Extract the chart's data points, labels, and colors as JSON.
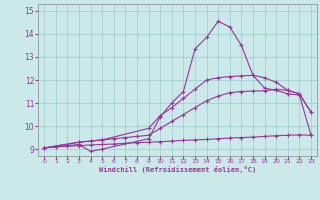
{
  "xlabel": "Windchill (Refroidissement éolien,°C)",
  "bg_color": "#cce9e9",
  "line_color": "#993399",
  "grid_color": "#99cccc",
  "xlim": [
    -0.5,
    23.5
  ],
  "ylim": [
    8.7,
    15.3
  ],
  "yticks": [
    9,
    10,
    11,
    12,
    13,
    14,
    15
  ],
  "xticks": [
    0,
    1,
    2,
    3,
    4,
    5,
    6,
    7,
    8,
    9,
    10,
    11,
    12,
    13,
    14,
    15,
    16,
    17,
    18,
    19,
    20,
    21,
    22,
    23
  ],
  "series": [
    {
      "x": [
        0,
        1,
        2,
        3,
        4,
        5,
        6,
        7,
        8,
        9,
        10,
        11,
        12,
        13,
        14,
        15,
        16,
        17,
        18,
        19,
        20,
        21,
        22,
        23
      ],
      "y": [
        9.05,
        9.1,
        9.12,
        9.15,
        9.18,
        9.2,
        9.22,
        9.25,
        9.28,
        9.3,
        9.32,
        9.35,
        9.38,
        9.4,
        9.42,
        9.45,
        9.48,
        9.5,
        9.52,
        9.55,
        9.58,
        9.6,
        9.62,
        9.6
      ]
    },
    {
      "x": [
        0,
        3,
        4,
        5,
        6,
        7,
        8,
        9,
        10,
        11,
        12,
        13,
        14,
        15,
        16,
        17,
        18,
        19,
        20,
        21,
        22,
        23
      ],
      "y": [
        9.05,
        9.3,
        9.35,
        9.4,
        9.45,
        9.5,
        9.55,
        9.6,
        9.9,
        10.2,
        10.5,
        10.8,
        11.1,
        11.3,
        11.45,
        11.5,
        11.52,
        11.53,
        11.6,
        11.55,
        11.4,
        10.6
      ]
    },
    {
      "x": [
        0,
        3,
        5,
        9,
        10,
        11,
        12,
        13,
        14,
        15,
        16,
        17,
        18,
        19,
        20,
        21,
        22,
        23
      ],
      "y": [
        9.05,
        9.3,
        9.4,
        9.9,
        10.45,
        10.8,
        11.2,
        11.6,
        12.0,
        12.1,
        12.15,
        12.18,
        12.2,
        12.1,
        11.9,
        11.55,
        11.4,
        10.6
      ]
    },
    {
      "x": [
        0,
        3,
        4,
        5,
        9,
        10,
        11,
        12,
        13,
        14,
        15,
        16,
        17,
        18,
        19,
        20,
        21,
        22,
        23
      ],
      "y": [
        9.05,
        9.2,
        8.9,
        9.0,
        9.45,
        10.4,
        11.0,
        11.5,
        13.35,
        13.85,
        14.55,
        14.3,
        13.5,
        12.2,
        11.65,
        11.55,
        11.4,
        11.35,
        9.6
      ]
    }
  ]
}
